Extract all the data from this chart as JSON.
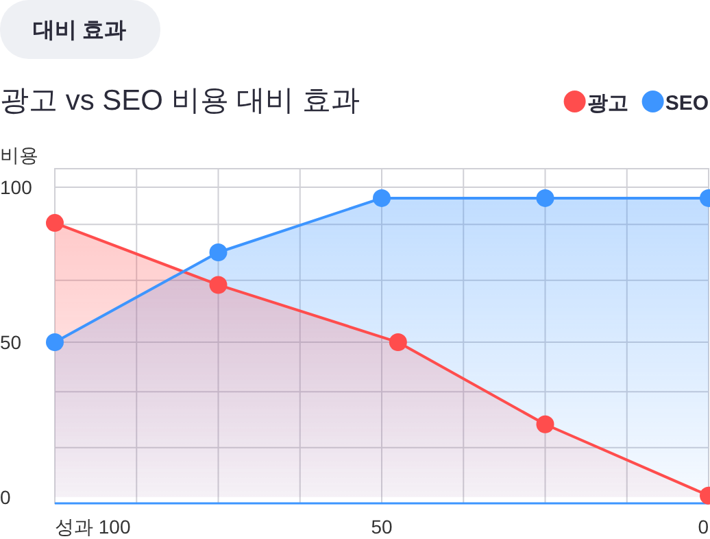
{
  "chart_data": {
    "type": "area",
    "subtitle": "대비 효과",
    "title": "광고 vs SEO 비용 대비 효과",
    "ylabel": "비용",
    "xlim": [
      100,
      0
    ],
    "xticks": [
      {
        "value": 100,
        "label": "성과 100"
      },
      {
        "value": 87.5,
        "label": null
      },
      {
        "value": 75,
        "label": null
      },
      {
        "value": 62.5,
        "label": null
      },
      50,
      {
        "value": 37.5,
        "label": null
      },
      {
        "value": 25,
        "label": null
      },
      {
        "value": 12.5,
        "label": null
      },
      0
    ],
    "ylim": [
      -2,
      106
    ],
    "yticks": [
      0,
      {
        "value": 16,
        "label": null
      },
      {
        "value": 34,
        "label": null
      },
      50,
      {
        "value": 70,
        "label": null
      },
      {
        "value": 88,
        "label": null
      },
      100
    ],
    "grid": true,
    "legend": "top right",
    "marker": "circle",
    "line_style": "solid",
    "series": [
      {
        "name": "광고",
        "color": "#ff4d4d",
        "x": [
          100,
          75,
          47.5,
          25,
          0
        ],
        "values": [
          88.5,
          68.5,
          50,
          23.5,
          0.5
        ]
      },
      {
        "name": "SEO",
        "color": "#3d95ff",
        "x": [
          100,
          75,
          50,
          25,
          0
        ],
        "values": [
          50,
          79,
          96.5,
          96.5,
          96.5
        ]
      }
    ]
  }
}
